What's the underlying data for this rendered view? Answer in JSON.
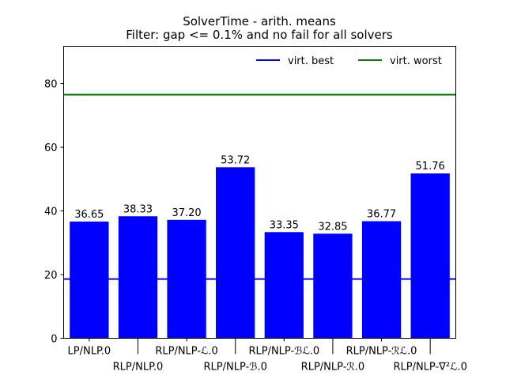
{
  "chart_data": {
    "type": "bar",
    "title": "SolverTime - arith. means",
    "subtitle": "Filter: gap <= 0.1% and no fail for all solvers",
    "xlabel": "",
    "ylabel": "",
    "ylim": [
      0,
      91.7
    ],
    "yticks": [
      0,
      20,
      40,
      60,
      80
    ],
    "grid": false,
    "categories": [
      "LP/NLP.0",
      "RLP/NLP.0",
      "RLP/NLP-ℒ.0",
      "RLP/NLP-ℬ.0",
      "RLP/NLP-ℬℒ.0",
      "RLP/NLP-ℛ.0",
      "RLP/NLP-ℛℒ.0",
      "RLP/NLP-∇²ℒ.0"
    ],
    "values": [
      36.65,
      38.33,
      37.2,
      53.72,
      33.35,
      32.85,
      36.77,
      51.76
    ],
    "value_labels": [
      "36.65",
      "38.33",
      "37.20",
      "53.72",
      "33.35",
      "32.85",
      "36.77",
      "51.76"
    ],
    "bar_color": "#0000ff",
    "hlines": [
      {
        "name": "virt. best",
        "value": 18.6,
        "color": "#0000ff"
      },
      {
        "name": "virt. worst",
        "value": 76.5,
        "color": "#008000"
      }
    ],
    "legend": {
      "placement": "top-right",
      "entries": [
        "virt. best",
        "virt. worst"
      ]
    }
  }
}
